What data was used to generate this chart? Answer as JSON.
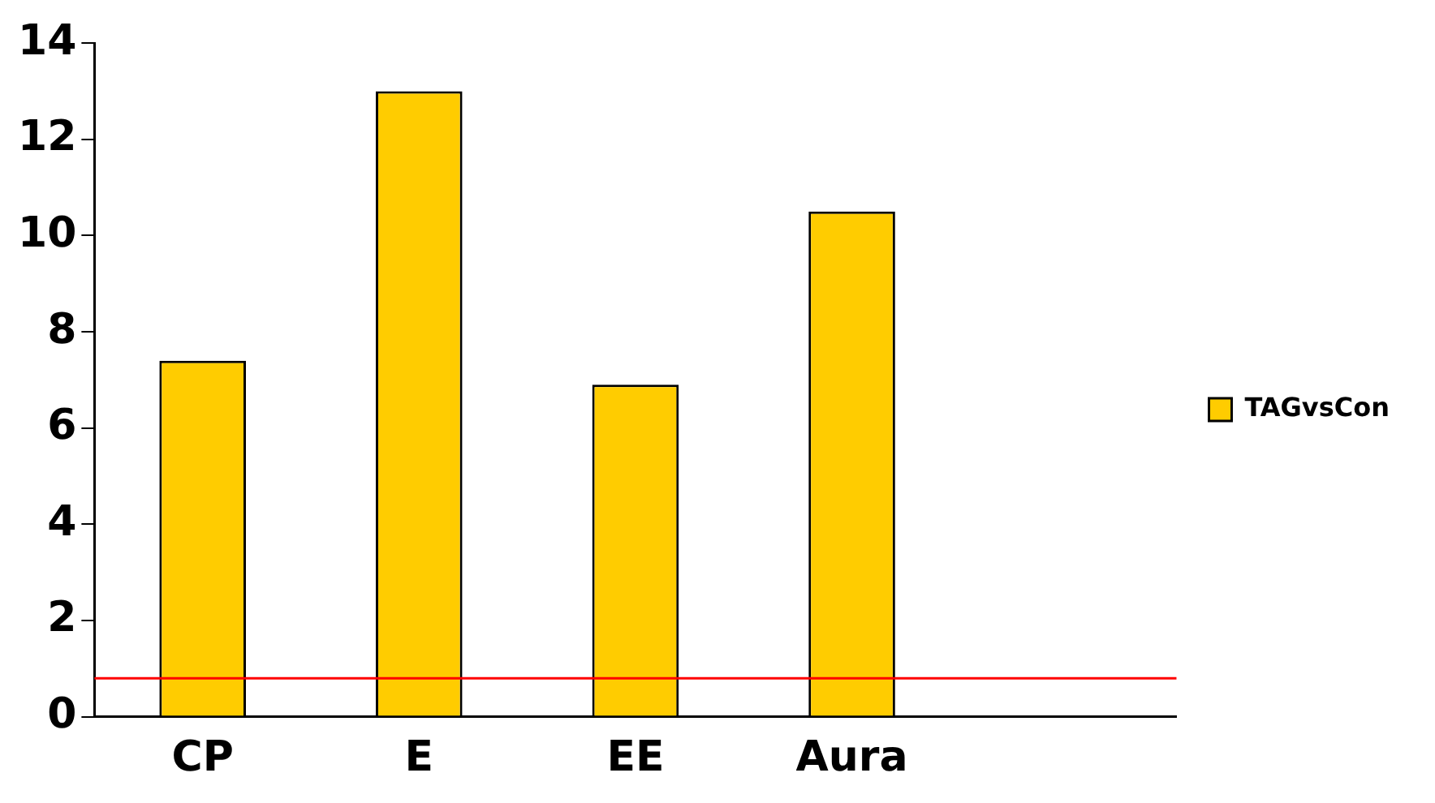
{
  "chart_data": {
    "type": "bar",
    "categories": [
      "CP",
      "E",
      "EE",
      "Aura",
      null
    ],
    "series": [
      {
        "name": "TAGvsCon",
        "color": "#ffcc00",
        "values": [
          7.4,
          13.0,
          6.9,
          10.5,
          null
        ]
      }
    ],
    "ylim": [
      0,
      14
    ],
    "yticks": [
      0,
      2,
      4,
      6,
      8,
      10,
      12,
      14
    ],
    "grid": false,
    "legend": "right",
    "ref_lines": [
      {
        "axis": "y",
        "value": 0.8,
        "color": "#ff0000"
      }
    ]
  }
}
